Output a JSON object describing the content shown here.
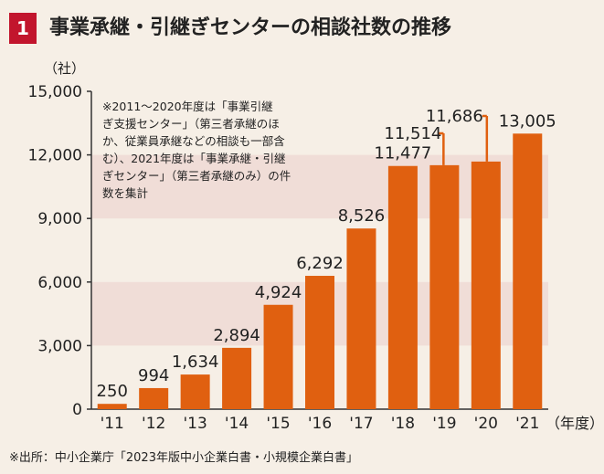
{
  "header": {
    "badge": "1",
    "title": "事業承継・引継ぎセンターの相談社数の推移"
  },
  "footer": {
    "source": "※出所：中小企業庁「2023年版中小企業白書・小規模企業白書」"
  },
  "colors": {
    "bar": "#e06010",
    "band": "#f0ddd7",
    "background": "#f6efe6",
    "accent": "#c2152d"
  },
  "chart_data": {
    "type": "bar",
    "title": "事業承継・引継ぎセンターの相談社数の推移",
    "ylabel": "（社）",
    "xlabel": "（年度）",
    "ylim": [
      0,
      15000
    ],
    "yticks": [
      0,
      3000,
      6000,
      9000,
      12000,
      15000
    ],
    "ytick_labels": [
      "0",
      "3,000",
      "6,000",
      "9,000",
      "12,000",
      "15,000"
    ],
    "categories": [
      "'11",
      "'12",
      "'13",
      "'14",
      "'15",
      "'16",
      "'17",
      "'18",
      "'19",
      "'20",
      "'21"
    ],
    "values": [
      250,
      994,
      1634,
      2894,
      4924,
      6292,
      8526,
      11477,
      11514,
      11686,
      13005
    ],
    "value_labels": [
      "250",
      "994",
      "1,634",
      "2,894",
      "4,924",
      "6,292",
      "8,526",
      "11,477",
      "11,514",
      "11,686",
      "13,005"
    ],
    "annotation_lines": [
      "※2011～2020年度は「事業引継",
      "ぎ支援センター」（第三者承継のほ",
      "か、従業員承継などの相談も一部含",
      "む）、2021年度は「事業承継・引継",
      "ぎセンター」（第三者承継のみ）の件",
      "数を集計"
    ]
  }
}
